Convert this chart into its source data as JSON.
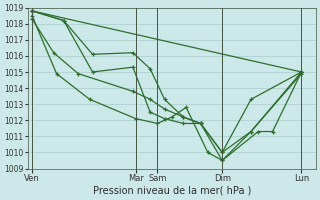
{
  "background_color": "#cce8e8",
  "grid_color": "#aacccc",
  "line_color": "#2d6e2d",
  "marker_color": "#2d6e2d",
  "xlabel": "Pression niveau de la mer( hPa )",
  "ylim": [
    1009,
    1019
  ],
  "xlim": [
    0,
    20
  ],
  "yticks": [
    1009,
    1010,
    1011,
    1012,
    1013,
    1014,
    1015,
    1016,
    1017,
    1018,
    1019
  ],
  "xtick_labels": [
    "Ven",
    "Mar",
    "Sam",
    "Dim",
    "Lun"
  ],
  "xtick_positions": [
    0.3,
    7.5,
    9.0,
    13.5,
    19.0
  ],
  "vlines": [
    0.3,
    7.5,
    9.0,
    13.5,
    19.0
  ],
  "series": [
    {
      "x": [
        0.3,
        19.0
      ],
      "y": [
        1018.8,
        1015.0
      ]
    },
    {
      "x": [
        0.3,
        2.5,
        4.5,
        7.3,
        8.5,
        9.5,
        10.8,
        12.0,
        13.5,
        15.5,
        19.0
      ],
      "y": [
        1018.8,
        1018.2,
        1016.1,
        1016.2,
        1015.2,
        1013.3,
        1012.2,
        1011.8,
        1010.0,
        1013.3,
        1015.0
      ]
    },
    {
      "x": [
        0.3,
        2.5,
        4.5,
        7.3,
        8.5,
        9.5,
        10.8,
        12.0,
        13.5,
        15.5,
        19.0
      ],
      "y": [
        1018.8,
        1018.2,
        1015.0,
        1015.3,
        1012.5,
        1012.1,
        1011.8,
        1011.8,
        1009.5,
        1011.3,
        1015.0
      ]
    },
    {
      "x": [
        0.3,
        1.8,
        3.5,
        7.3,
        8.5,
        9.5,
        10.8,
        12.0,
        13.5,
        15.5,
        19.0
      ],
      "y": [
        1018.3,
        1016.2,
        1014.9,
        1013.8,
        1013.3,
        1012.7,
        1012.2,
        1011.8,
        1010.0,
        1011.3,
        1014.9
      ]
    },
    {
      "x": [
        0.3,
        2.0,
        4.3,
        7.5,
        9.0,
        10.0,
        11.0,
        12.5,
        13.5,
        16.0,
        17.0,
        19.0
      ],
      "y": [
        1018.5,
        1014.9,
        1013.3,
        1012.1,
        1011.8,
        1012.2,
        1012.8,
        1010.0,
        1009.5,
        1011.3,
        1011.3,
        1015.0
      ]
    }
  ]
}
